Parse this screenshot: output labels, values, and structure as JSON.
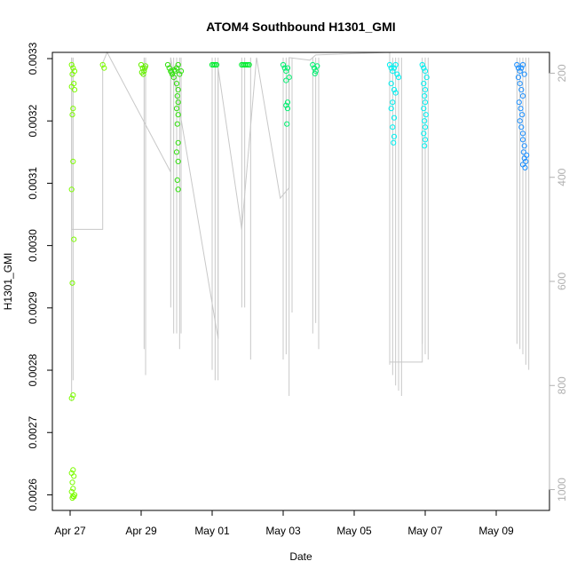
{
  "chart_data": {
    "type": "scatter",
    "title": "ATOM4 Southbound H1301_GMI",
    "xlabel": "Date",
    "ylabel": "H1301_GMI",
    "xlim": [
      "2016-04-26T12:00",
      "2016-05-10T12:00"
    ],
    "ylim": [
      0.002575,
      0.00331
    ],
    "y2lim": [
      1040,
      160
    ],
    "grid": false,
    "x_ticks": [
      {
        "value": "2016-04-27",
        "label": "Apr 27"
      },
      {
        "value": "2016-04-29",
        "label": "Apr 29"
      },
      {
        "value": "2016-05-01",
        "label": "May 01"
      },
      {
        "value": "2016-05-03",
        "label": "May 03"
      },
      {
        "value": "2016-05-05",
        "label": "May 05"
      },
      {
        "value": "2016-05-07",
        "label": "May 07"
      },
      {
        "value": "2016-05-09",
        "label": "May 09"
      }
    ],
    "y_ticks": [
      {
        "value": 0.0026,
        "label": "0.0026"
      },
      {
        "value": 0.0027,
        "label": "0.0027"
      },
      {
        "value": 0.0028,
        "label": "0.0028"
      },
      {
        "value": 0.0029,
        "label": "0.0029"
      },
      {
        "value": 0.003,
        "label": "0.0030"
      },
      {
        "value": 0.0031,
        "label": "0.0031"
      },
      {
        "value": 0.0032,
        "label": "0.0032"
      },
      {
        "value": 0.0033,
        "label": "0.0033"
      }
    ],
    "y2_ticks": [
      {
        "value": 200,
        "label": "200"
      },
      {
        "value": 400,
        "label": "400"
      },
      {
        "value": 600,
        "label": "600"
      },
      {
        "value": 800,
        "label": "800"
      },
      {
        "value": 1000,
        "label": "1000"
      }
    ],
    "colors": {
      "trace": "#c8c8c8",
      "y2_axis": "#b0b0b0"
    },
    "trace_polyline": [
      [
        "2016-04-27T01:00",
        170
      ],
      [
        "2016-04-27T01:00",
        500
      ],
      [
        "2016-04-27T22:00",
        500
      ],
      [
        "2016-04-27T22:00",
        180
      ],
      [
        "2016-04-28T01:00",
        160
      ],
      [
        "2016-04-29T20:00",
        390
      ],
      [
        "2016-04-29T20:00",
        170
      ],
      [
        "2016-05-01T04:00",
        710
      ],
      [
        "2016-05-01T04:00",
        190
      ],
      [
        "2016-05-01T20:00",
        500
      ],
      [
        "2016-05-02T06:00",
        170
      ],
      [
        "2016-05-02T22:00",
        440
      ],
      [
        "2016-05-03T04:00",
        420
      ],
      [
        "2016-05-03T04:00",
        170
      ],
      [
        "2016-05-03T18:00",
        175
      ],
      [
        "2016-05-03T22:00",
        165
      ],
      [
        "2016-05-06T00:00",
        160
      ],
      [
        "2016-05-06T00:00",
        755
      ],
      [
        "2016-05-06T22:00",
        755
      ],
      [
        "2016-05-06T22:00",
        180
      ]
    ],
    "trace_spikes": [
      [
        "2016-04-27T01:00",
        170,
        830
      ],
      [
        "2016-04-27T02:00",
        170,
        790
      ],
      [
        "2016-04-29T02:00",
        170,
        730
      ],
      [
        "2016-04-29T03:00",
        170,
        780
      ],
      [
        "2016-04-29T20:00",
        170,
        650
      ],
      [
        "2016-04-29T22:00",
        170,
        700
      ],
      [
        "2016-04-30T00:00",
        170,
        700
      ],
      [
        "2016-04-30T02:00",
        170,
        730
      ],
      [
        "2016-04-30T03:00",
        170,
        700
      ],
      [
        "2016-05-01T00:00",
        170,
        770
      ],
      [
        "2016-05-01T02:00",
        170,
        790
      ],
      [
        "2016-05-01T04:00",
        170,
        790
      ],
      [
        "2016-05-01T20:00",
        170,
        650
      ],
      [
        "2016-05-01T22:00",
        170,
        650
      ],
      [
        "2016-05-02T02:00",
        170,
        750
      ],
      [
        "2016-05-03T00:00",
        170,
        750
      ],
      [
        "2016-05-03T02:00",
        170,
        740
      ],
      [
        "2016-05-03T04:00",
        170,
        820
      ],
      [
        "2016-05-03T06:00",
        170,
        660
      ],
      [
        "2016-05-03T20:00",
        170,
        700
      ],
      [
        "2016-05-03T22:00",
        170,
        680
      ],
      [
        "2016-05-04T00:00",
        170,
        730
      ],
      [
        "2016-05-06T00:00",
        170,
        760
      ],
      [
        "2016-05-06T02:00",
        170,
        780
      ],
      [
        "2016-05-06T04:00",
        170,
        800
      ],
      [
        "2016-05-06T06:00",
        170,
        810
      ],
      [
        "2016-05-06T08:00",
        170,
        820
      ],
      [
        "2016-05-06T22:00",
        170,
        720
      ],
      [
        "2016-05-07T00:00",
        170,
        740
      ],
      [
        "2016-05-07T02:00",
        170,
        750
      ],
      [
        "2016-05-09T14:00",
        170,
        720
      ],
      [
        "2016-05-09T16:00",
        170,
        730
      ],
      [
        "2016-05-09T18:00",
        170,
        740
      ],
      [
        "2016-05-09T20:00",
        170,
        760
      ],
      [
        "2016-05-09T22:00",
        170,
        770
      ]
    ],
    "series": [
      {
        "color": "#7cfc00",
        "points": [
          [
            "2016-04-27T01:00",
            0.00329
          ],
          [
            "2016-04-27T02:00",
            0.003285
          ],
          [
            "2016-04-27T03:00",
            0.00328
          ],
          [
            "2016-04-27T01:30",
            0.003275
          ],
          [
            "2016-04-27T02:30",
            0.00326
          ],
          [
            "2016-04-27T01:00",
            0.003255
          ],
          [
            "2016-04-27T03:00",
            0.00325
          ],
          [
            "2016-04-27T02:00",
            0.00322
          ],
          [
            "2016-04-27T01:30",
            0.00321
          ],
          [
            "2016-04-27T02:00",
            0.003135
          ],
          [
            "2016-04-27T01:00",
            0.00309
          ],
          [
            "2016-04-27T02:30",
            0.00301
          ],
          [
            "2016-04-27T01:30",
            0.00294
          ],
          [
            "2016-04-27T02:00",
            0.00276
          ],
          [
            "2016-04-27T01:00",
            0.002755
          ],
          [
            "2016-04-27T02:00",
            0.00264
          ],
          [
            "2016-04-27T01:00",
            0.002635
          ],
          [
            "2016-04-27T02:30",
            0.00263
          ],
          [
            "2016-04-27T01:30",
            0.00262
          ],
          [
            "2016-04-27T02:00",
            0.00261
          ],
          [
            "2016-04-27T01:00",
            0.002605
          ],
          [
            "2016-04-27T03:00",
            0.0026
          ],
          [
            "2016-04-27T02:00",
            0.002598
          ],
          [
            "2016-04-27T01:30",
            0.002595
          ],
          [
            "2016-04-27T02:30",
            0.002597
          ],
          [
            "2016-04-27T22:00",
            0.00329
          ],
          [
            "2016-04-27T23:00",
            0.003285
          ]
        ]
      },
      {
        "color": "#66f000",
        "points": [
          [
            "2016-04-29T00:00",
            0.00329
          ],
          [
            "2016-04-29T01:00",
            0.003285
          ],
          [
            "2016-04-29T02:00",
            0.00328
          ],
          [
            "2016-04-29T03:00",
            0.003288
          ],
          [
            "2016-04-29T00:30",
            0.003278
          ],
          [
            "2016-04-29T01:30",
            0.003275
          ],
          [
            "2016-04-29T02:30",
            0.003285
          ]
        ]
      },
      {
        "color": "#33e010",
        "points": [
          [
            "2016-04-29T18:00",
            0.00329
          ],
          [
            "2016-04-29T19:00",
            0.003285
          ],
          [
            "2016-04-29T20:00",
            0.00328
          ],
          [
            "2016-04-29T21:00",
            0.003275
          ],
          [
            "2016-04-29T22:00",
            0.00327
          ],
          [
            "2016-04-29T23:00",
            0.00328
          ],
          [
            "2016-04-30T00:00",
            0.003285
          ],
          [
            "2016-04-30T01:00",
            0.00329
          ],
          [
            "2016-04-30T02:00",
            0.003275
          ],
          [
            "2016-04-30T03:00",
            0.00328
          ],
          [
            "2016-04-29T20:30",
            0.003278
          ],
          [
            "2016-04-29T22:30",
            0.003282
          ],
          [
            "2016-04-30T00:00",
            0.00326
          ],
          [
            "2016-04-30T01:00",
            0.00325
          ],
          [
            "2016-04-30T00:30",
            0.00324
          ],
          [
            "2016-04-30T01:00",
            0.00323
          ],
          [
            "2016-04-30T00:00",
            0.00322
          ],
          [
            "2016-04-30T01:00",
            0.00321
          ],
          [
            "2016-04-30T00:30",
            0.003195
          ],
          [
            "2016-04-30T01:00",
            0.003165
          ],
          [
            "2016-04-30T00:00",
            0.00315
          ],
          [
            "2016-04-30T01:00",
            0.003135
          ],
          [
            "2016-04-30T00:30",
            0.003105
          ],
          [
            "2016-04-30T01:00",
            0.00309
          ]
        ]
      },
      {
        "color": "#00ee30",
        "points": [
          [
            "2016-05-01T00:00",
            0.00329
          ],
          [
            "2016-05-01T01:00",
            0.00329
          ],
          [
            "2016-05-01T02:00",
            0.00329
          ],
          [
            "2016-05-01T03:00",
            0.00329
          ],
          [
            "2016-05-01T20:00",
            0.00329
          ],
          [
            "2016-05-01T21:00",
            0.00329
          ],
          [
            "2016-05-01T22:00",
            0.00329
          ],
          [
            "2016-05-01T23:00",
            0.00329
          ],
          [
            "2016-05-02T00:00",
            0.00329
          ],
          [
            "2016-05-02T01:00",
            0.00329
          ]
        ]
      },
      {
        "color": "#00f070",
        "points": [
          [
            "2016-05-03T00:00",
            0.00329
          ],
          [
            "2016-05-03T01:00",
            0.003285
          ],
          [
            "2016-05-03T02:00",
            0.00328
          ],
          [
            "2016-05-03T03:00",
            0.003285
          ],
          [
            "2016-05-03T04:00",
            0.00327
          ],
          [
            "2016-05-03T02:00",
            0.003265
          ],
          [
            "2016-05-03T03:00",
            0.00323
          ],
          [
            "2016-05-03T02:00",
            0.003225
          ],
          [
            "2016-05-03T03:00",
            0.00322
          ],
          [
            "2016-05-03T02:30",
            0.003195
          ],
          [
            "2016-05-03T20:00",
            0.00329
          ],
          [
            "2016-05-03T21:00",
            0.003285
          ],
          [
            "2016-05-03T22:00",
            0.00328
          ],
          [
            "2016-05-03T23:00",
            0.003288
          ],
          [
            "2016-05-03T21:30",
            0.003276
          ]
        ]
      },
      {
        "color": "#00f0f0",
        "points": [
          [
            "2016-05-06T00:00",
            0.00329
          ],
          [
            "2016-05-06T01:00",
            0.003285
          ],
          [
            "2016-05-06T02:00",
            0.00328
          ],
          [
            "2016-05-06T03:00",
            0.003285
          ],
          [
            "2016-05-06T04:00",
            0.00329
          ],
          [
            "2016-05-06T05:00",
            0.003275
          ],
          [
            "2016-05-06T06:00",
            0.00327
          ],
          [
            "2016-05-06T01:00",
            0.00326
          ],
          [
            "2016-05-06T03:00",
            0.00325
          ],
          [
            "2016-05-06T04:00",
            0.003245
          ],
          [
            "2016-05-06T02:00",
            0.00323
          ],
          [
            "2016-05-06T01:00",
            0.00322
          ],
          [
            "2016-05-06T03:00",
            0.003205
          ],
          [
            "2016-05-06T02:00",
            0.00319
          ],
          [
            "2016-05-06T03:00",
            0.003175
          ],
          [
            "2016-05-06T02:30",
            0.003165
          ],
          [
            "2016-05-06T22:00",
            0.00329
          ],
          [
            "2016-05-06T23:00",
            0.003285
          ],
          [
            "2016-05-07T00:00",
            0.00328
          ],
          [
            "2016-05-07T01:00",
            0.00327
          ],
          [
            "2016-05-06T23:00",
            0.00326
          ],
          [
            "2016-05-07T00:00",
            0.00325
          ],
          [
            "2016-05-06T23:30",
            0.00324
          ],
          [
            "2016-05-07T00:00",
            0.00323
          ],
          [
            "2016-05-06T23:00",
            0.00322
          ],
          [
            "2016-05-07T00:30",
            0.00321
          ],
          [
            "2016-05-06T23:30",
            0.0032
          ],
          [
            "2016-05-07T00:00",
            0.00319
          ],
          [
            "2016-05-06T23:00",
            0.00318
          ],
          [
            "2016-05-07T00:00",
            0.00317
          ],
          [
            "2016-05-06T23:30",
            0.00316
          ]
        ]
      },
      {
        "color": "#1e90ff",
        "points": [
          [
            "2016-05-09T14:00",
            0.00329
          ],
          [
            "2016-05-09T15:00",
            0.003285
          ],
          [
            "2016-05-09T16:00",
            0.00328
          ],
          [
            "2016-05-09T17:00",
            0.003285
          ],
          [
            "2016-05-09T18:00",
            0.00329
          ],
          [
            "2016-05-09T19:00",
            0.003275
          ],
          [
            "2016-05-09T15:00",
            0.00327
          ],
          [
            "2016-05-09T16:00",
            0.00326
          ],
          [
            "2016-05-09T17:00",
            0.00325
          ],
          [
            "2016-05-09T18:00",
            0.00324
          ],
          [
            "2016-05-09T15:30",
            0.00323
          ],
          [
            "2016-05-09T16:30",
            0.00322
          ],
          [
            "2016-05-09T17:30",
            0.00321
          ],
          [
            "2016-05-09T16:00",
            0.0032
          ],
          [
            "2016-05-09T17:00",
            0.00319
          ],
          [
            "2016-05-09T18:00",
            0.00318
          ],
          [
            "2016-05-09T18:00",
            0.00317
          ],
          [
            "2016-05-09T19:00",
            0.00316
          ],
          [
            "2016-05-09T18:30",
            0.00315
          ],
          [
            "2016-05-09T19:00",
            0.00314
          ],
          [
            "2016-05-09T18:00",
            0.00313
          ],
          [
            "2016-05-09T19:30",
            0.003125
          ],
          [
            "2016-05-09T20:00",
            0.003135
          ],
          [
            "2016-05-09T20:30",
            0.003145
          ]
        ]
      }
    ]
  }
}
